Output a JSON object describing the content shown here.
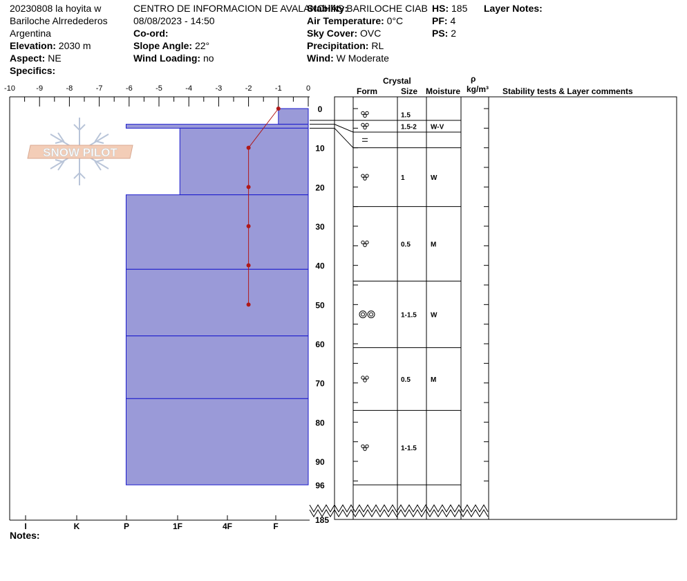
{
  "header": {
    "name": "20230808 la hoyita w",
    "region": "Bariloche Alrredederos",
    "country": "Argentina",
    "elevation_label": "Elevation:",
    "elevation_value": "2030 m",
    "aspect_label": "Aspect:",
    "aspect_value": "NE",
    "specifics_label": "Specifics:",
    "organization": "CENTRO DE INFORMACION DE AVALANCHAS BARILOCHE CIAB",
    "datetime": "08/08/2023 - 14:50",
    "coord_label": "Co-ord:",
    "slope_label": "Slope Angle:",
    "slope_value": "22°",
    "windload_label": "Wind Loading:",
    "windload_value": "no",
    "stability_label": "Stability:",
    "airtemp_label": "Air Temperature:",
    "airtemp_value": "0°C",
    "sky_label": "Sky Cover:",
    "sky_value": "OVC",
    "precip_label": "Precipitation:",
    "precip_value": "RL",
    "wind_label": "Wind:",
    "wind_value": "W Moderate",
    "hs_label": "HS:",
    "hs_value": "185",
    "pf_label": "PF:",
    "pf_value": "4",
    "ps_label": "PS:",
    "ps_value": "2",
    "layer_notes_label": "Layer Notes:"
  },
  "notes_label": "Notes:",
  "table_headers": {
    "crystal": "Crystal",
    "form": "Form",
    "size": "Size",
    "moisture": "Moisture",
    "rho": "ρ",
    "density_unit": "kg/m³",
    "comments": "Stability tests & Layer comments"
  },
  "logo_text": "SNOW PILOT",
  "colors": {
    "hardness_fill": "#9a9ad8",
    "hardness_line": "#1a1acc",
    "temperature": "#b01818"
  },
  "chart_data": {
    "type": "snow-profile",
    "temperature_axis": {
      "ticks": [
        -10,
        -9,
        -8,
        -7,
        -6,
        -5,
        -4,
        -3,
        -2,
        -1,
        0
      ],
      "range": [
        -10,
        0
      ]
    },
    "depth_axis": {
      "ticks": [
        0,
        10,
        20,
        30,
        40,
        50,
        60,
        70,
        80,
        90,
        96
      ],
      "bottom_label": "185",
      "range": [
        0,
        96
      ]
    },
    "hardness_axis": {
      "labels": [
        "I",
        "K",
        "P",
        "1F",
        "4F",
        "F"
      ]
    },
    "temperature_profile": [
      {
        "depth": 0,
        "temp": -1
      },
      {
        "depth": 10,
        "temp": -2
      },
      {
        "depth": 20,
        "temp": -2
      },
      {
        "depth": 30,
        "temp": -2
      },
      {
        "depth": 40,
        "temp": -2
      },
      {
        "depth": 50,
        "temp": -2
      }
    ],
    "layers": [
      {
        "top": 0,
        "bottom": 4,
        "hardness": -1,
        "form_icon": "rounded-grains-icon",
        "size": "1.5",
        "moisture": ""
      },
      {
        "top": 4,
        "bottom": 5,
        "hardness": -6.1,
        "form_icon": "rounded-grains-icon",
        "size": "1.5-2",
        "moisture": "W-V"
      },
      {
        "top": 5,
        "bottom": 22,
        "hardness": -4.3,
        "form_icon": "",
        "size": "",
        "moisture": ""
      },
      {
        "top": 22,
        "bottom": 41,
        "hardness": -6.1,
        "form_icon": "",
        "size": "",
        "moisture": ""
      },
      {
        "top": 41,
        "bottom": 58,
        "hardness": -6.1,
        "form_icon": "",
        "size": "",
        "moisture": ""
      },
      {
        "top": 58,
        "bottom": 74,
        "hardness": -6.1,
        "form_icon": "",
        "size": "",
        "moisture": ""
      },
      {
        "top": 74,
        "bottom": 96,
        "hardness": -6.1,
        "form_icon": "",
        "size": "",
        "moisture": ""
      }
    ],
    "table_rows": [
      {
        "top": 0,
        "bottom": 3,
        "form": "rounded-grains-icon",
        "size": "1.5",
        "moisture": ""
      },
      {
        "top": 3,
        "bottom": 6,
        "form": "rounded-grains-icon",
        "size": "1.5-2",
        "moisture": "W-V"
      },
      {
        "top": 6,
        "bottom": 10,
        "form": "ice-crust-icon",
        "size": "",
        "moisture": ""
      },
      {
        "top": 10,
        "bottom": 25,
        "form": "rounded-grains-icon",
        "size": "1",
        "moisture": "W"
      },
      {
        "top": 25,
        "bottom": 44,
        "form": "rounded-grains-icon",
        "size": "0.5",
        "moisture": "M"
      },
      {
        "top": 44,
        "bottom": 61,
        "form": "melt-forms-icon",
        "size": "1-1.5",
        "moisture": "W"
      },
      {
        "top": 61,
        "bottom": 77,
        "form": "rounded-grains-icon",
        "size": "0.5",
        "moisture": "M"
      },
      {
        "top": 77,
        "bottom": 96,
        "form": "rounded-grains-icon",
        "size": "1-1.5",
        "moisture": ""
      }
    ]
  }
}
